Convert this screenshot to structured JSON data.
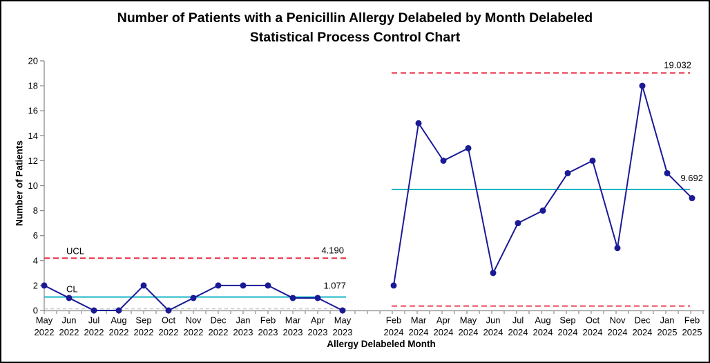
{
  "title": {
    "line1": "Number of Patients with a Penicillin Allergy Delabeled by Month Delabeled",
    "line2": "Statistical Process Control Chart"
  },
  "chart_data": {
    "type": "line",
    "title": "Number of Patients with a Penicillin Allergy Delabeled by Month Delabeled Statistical Process Control Chart",
    "xlabel": "Allergy Delabeled Month",
    "ylabel": "Number of Patients",
    "ylim": [
      0,
      20
    ],
    "ytick_step": 2,
    "grid": false,
    "legend": "none",
    "colors": {
      "series": "#1a1a96",
      "ucl": "#e8213a",
      "cl": "#00afc1",
      "lcl_gray": "#cbcbcb",
      "axis": "#8c8c8c",
      "text": "#000000"
    },
    "segments": [
      {
        "name": "baseline-period",
        "categories": [
          {
            "month": "May",
            "year": "2022"
          },
          {
            "month": "Jun",
            "year": "2022"
          },
          {
            "month": "Jul",
            "year": "2022"
          },
          {
            "month": "Aug",
            "year": "2022"
          },
          {
            "month": "Sep",
            "year": "2022"
          },
          {
            "month": "Oct",
            "year": "2022"
          },
          {
            "month": "Nov",
            "year": "2022"
          },
          {
            "month": "Dec",
            "year": "2022"
          },
          {
            "month": "Jan",
            "year": "2023"
          },
          {
            "month": "Feb",
            "year": "2023"
          },
          {
            "month": "Mar",
            "year": "2023"
          },
          {
            "month": "Apr",
            "year": "2023"
          },
          {
            "month": "May",
            "year": "2023"
          }
        ],
        "values": [
          2,
          1,
          0,
          0,
          2,
          0,
          1,
          2,
          2,
          2,
          1,
          1,
          0
        ],
        "ucl": 4.19,
        "ucl_label": "4.190",
        "ucl_text": "UCL",
        "cl": 1.077,
        "cl_label": "1.077",
        "cl_text": "CL",
        "lcl": 0,
        "lcl_style": "gray"
      },
      {
        "name": "post-period",
        "categories": [
          {
            "month": "Feb",
            "year": "2024"
          },
          {
            "month": "Mar",
            "year": "2024"
          },
          {
            "month": "Apr",
            "year": "2024"
          },
          {
            "month": "May",
            "year": "2024"
          },
          {
            "month": "Jun",
            "year": "2024"
          },
          {
            "month": "Jul",
            "year": "2024"
          },
          {
            "month": "Aug",
            "year": "2024"
          },
          {
            "month": "Sep",
            "year": "2024"
          },
          {
            "month": "Oct",
            "year": "2024"
          },
          {
            "month": "Nov",
            "year": "2024"
          },
          {
            "month": "Dec",
            "year": "2024"
          },
          {
            "month": "Jan",
            "year": "2025"
          },
          {
            "month": "Feb",
            "year": "2025"
          }
        ],
        "values": [
          2,
          15,
          12,
          13,
          3,
          7,
          8,
          11,
          12,
          5,
          18,
          11,
          9
        ],
        "ucl": 19.032,
        "ucl_label": "19.032",
        "ucl_text": "",
        "cl": 9.692,
        "cl_label": "9.692",
        "cl_text": "",
        "lcl": 0.352,
        "lcl_style": "red"
      }
    ]
  }
}
